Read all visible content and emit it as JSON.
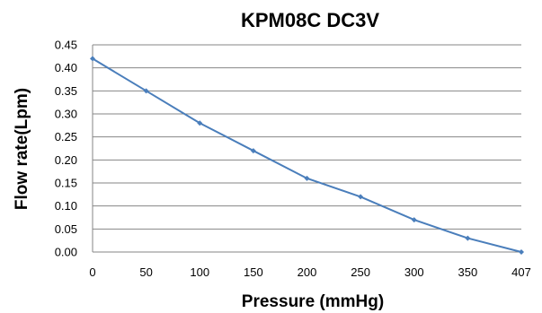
{
  "chart_data": {
    "type": "line",
    "title": "KPM08C  DC3V",
    "xlabel": "Pressure (mmHg)",
    "ylabel": "Flow rate(Lpm)",
    "categories": [
      "0",
      "50",
      "100",
      "150",
      "200",
      "250",
      "300",
      "350",
      "407"
    ],
    "series": [
      {
        "values": [
          0.42,
          0.35,
          0.28,
          0.22,
          0.16,
          0.12,
          0.07,
          0.03,
          0.0
        ]
      }
    ],
    "ylim": [
      0,
      0.45
    ],
    "yticks": [
      "0.00",
      "0.05",
      "0.10",
      "0.15",
      "0.20",
      "0.25",
      "0.30",
      "0.35",
      "0.40",
      "0.45"
    ],
    "grid": "horizontal",
    "legend": "none",
    "series_color": "#4a7ebb"
  }
}
